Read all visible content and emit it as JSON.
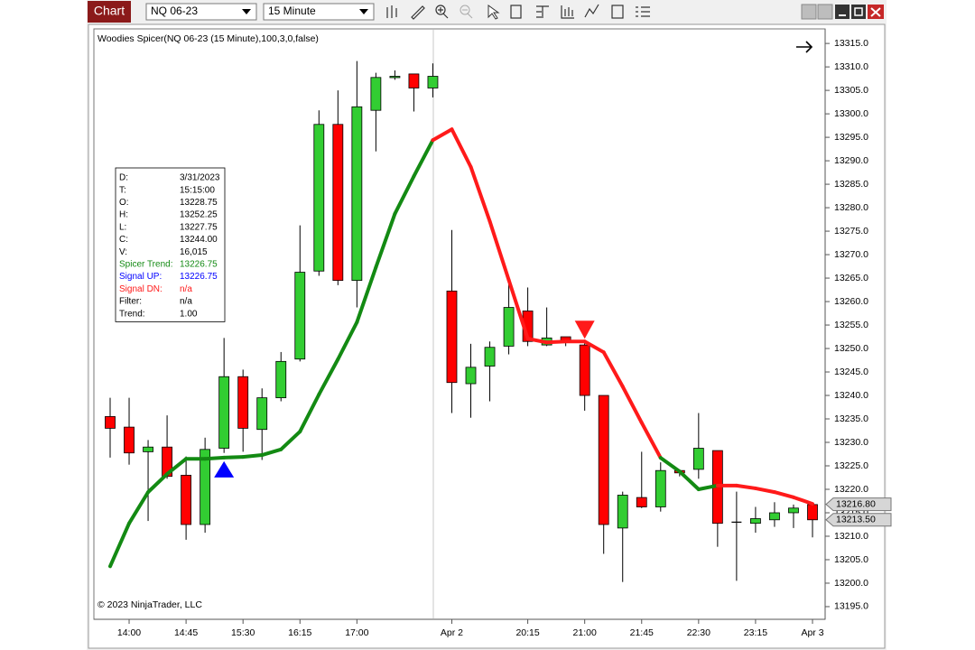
{
  "toolbar": {
    "title": "Chart",
    "instrument": "NQ 06-23",
    "interval": "15 Minute"
  },
  "chart_data": {
    "type": "candlestick",
    "title": "Woodies Spicer(NQ 06-23 (15 Minute),100,3,0,false)",
    "copyright": "© 2023 NinjaTrader, LLC",
    "x": [
      null,
      "14:00",
      null,
      null,
      "14:45",
      null,
      null,
      "15:30",
      null,
      null,
      "16:15",
      null,
      null,
      "17:00",
      null,
      null,
      null,
      null,
      "Apr 2",
      null,
      null,
      null,
      "20:15",
      null,
      null,
      "21:00",
      null,
      null,
      "21:45",
      null,
      null,
      "22:30",
      null,
      null,
      "23:15",
      null,
      null,
      "Apr 3"
    ],
    "open": [
      13235.5,
      13233.25,
      13228,
      13229,
      13223,
      13212.5,
      13228.75,
      13244,
      13232.75,
      13239.5,
      13247.75,
      13266.5,
      13297.75,
      13264.5,
      13300.75,
      13307.75,
      13308.5,
      13305.5,
      13262.25,
      13242.5,
      13246.25,
      13250.5,
      13258,
      13250.75,
      13252.5,
      13250.75,
      13240,
      13211.75,
      13218.25,
      13216.25,
      13224,
      13224.25,
      13228.25,
      13213,
      13212.75,
      13213.5,
      13215,
      13216.75
    ],
    "high": [
      13239.5,
      13239.5,
      13230.5,
      13235.75,
      13227,
      13231,
      13252.25,
      13245.5,
      13241.5,
      13249.25,
      13276.25,
      13300.75,
      13305,
      13311.25,
      13308.75,
      13309.25,
      13308.5,
      13310.75,
      13275.25,
      13251,
      13251.5,
      13265,
      13263,
      13258.75,
      13252.5,
      13251.5,
      13240,
      13219.5,
      13228,
      13225.75,
      13224,
      13236.25,
      13228.25,
      13219.5,
      13216.25,
      13217.25,
      13216.75,
      13216.75
    ],
    "low": [
      13226.75,
      13225.25,
      13213.25,
      13222.25,
      13209.25,
      13210.75,
      13227.75,
      13228,
      13226.25,
      13238.75,
      13247.25,
      13265.5,
      13263.5,
      13258.75,
      13292,
      13307.25,
      13300.5,
      13303.5,
      13236.25,
      13235.25,
      13238.75,
      13248.75,
      13250.5,
      13250.5,
      13250.5,
      13236.75,
      13206.25,
      13200.25,
      13216,
      13215.25,
      13222.75,
      13222.25,
      13207.75,
      13200.5,
      13210.75,
      13212,
      13211.75,
      13209.75
    ],
    "close": [
      13233,
      13227.75,
      13229,
      13222.75,
      13212.5,
      13228.5,
      13244,
      13233,
      13239.5,
      13247.25,
      13266.25,
      13297.75,
      13264.5,
      13301.5,
      13307.75,
      13308,
      13305.5,
      13308,
      13242.75,
      13246,
      13250.25,
      13258.75,
      13251.5,
      13252.25,
      13251.25,
      13240,
      13212.5,
      13218.75,
      13216.25,
      13224,
      13223.5,
      13228.75,
      13212.75,
      13213,
      13213.75,
      13215,
      13216,
      13213.5
    ],
    "up_color": "#32cd32",
    "down_color": "#ff0000",
    "doji_color": "#000000",
    "trend_line": {
      "values": [
        13203.6,
        13212.75,
        13219.4,
        13223.25,
        13226.5,
        13226.5,
        13226.75,
        13226.9,
        13227.3,
        13228.5,
        13232.3,
        13240.2,
        13247.7,
        13255.6,
        13267.3,
        13278.7,
        13286.7,
        13294.4,
        13296.7,
        13288.7,
        13277.1,
        13264.6,
        13252.1,
        13251.3,
        13251.5,
        13251.5,
        13249.2,
        13241.9,
        13234.2,
        13226.7,
        13223.8,
        13220,
        13220.8,
        13220.8,
        13220.2,
        13219.4,
        13218.3,
        13216.9
      ],
      "point_colors": [
        "#138a13",
        "#138a13",
        "#138a13",
        "#138a13",
        "#138a13",
        "#138a13",
        "#138a13",
        "#138a13",
        "#138a13",
        "#138a13",
        "#138a13",
        "#138a13",
        "#138a13",
        "#138a13",
        "#138a13",
        "#138a13",
        "#138a13",
        "#138a13",
        "#ff1a1a",
        "#ff1a1a",
        "#ff1a1a",
        "#ff1a1a",
        "#ff1a1a",
        "#ff1a1a",
        "#ff1a1a",
        "#ff1a1a",
        "#ff1a1a",
        "#ff1a1a",
        "#ff1a1a",
        "#ff1a1a",
        "#138a13",
        "#138a13",
        "#138a13",
        "#ff1a1a",
        "#ff1a1a",
        "#ff1a1a",
        "#ff1a1a",
        "#ff1a1a"
      ]
    },
    "signal_up": {
      "color": "#0000ff",
      "values": [
        null,
        null,
        null,
        null,
        null,
        null,
        13226.75,
        null,
        null,
        null,
        null,
        null,
        null,
        null,
        null,
        null,
        null,
        null,
        null,
        null,
        null,
        null,
        null,
        null,
        null,
        null,
        null,
        null,
        null,
        null,
        null,
        null,
        null,
        null,
        null,
        null,
        null,
        null
      ]
    },
    "signal_dn": {
      "color": "#ff1a1a",
      "values": [
        null,
        null,
        null,
        null,
        null,
        null,
        null,
        null,
        null,
        null,
        null,
        null,
        null,
        null,
        null,
        null,
        null,
        null,
        null,
        null,
        null,
        null,
        null,
        null,
        null,
        13251.5,
        null,
        null,
        null,
        null,
        null,
        null,
        null,
        null,
        null,
        null,
        null,
        null
      ]
    },
    "ylim": [
      13192.3,
      13318.1
    ],
    "yticks": [
      {
        "value": 13315,
        "label": "13315.0"
      },
      {
        "value": 13310,
        "label": "13310.0"
      },
      {
        "value": 13305,
        "label": "13305.0"
      },
      {
        "value": 13300,
        "label": "13300.0"
      },
      {
        "value": 13295,
        "label": "13295.0"
      },
      {
        "value": 13290,
        "label": "13290.0"
      },
      {
        "value": 13285,
        "label": "13285.0"
      },
      {
        "value": 13280,
        "label": "13280.0"
      },
      {
        "value": 13275,
        "label": "13275.0"
      },
      {
        "value": 13270,
        "label": "13270.0"
      },
      {
        "value": 13265,
        "label": "13265.0"
      },
      {
        "value": 13260,
        "label": "13260.0"
      },
      {
        "value": 13255,
        "label": "13255.0"
      },
      {
        "value": 13250,
        "label": "13250.0"
      },
      {
        "value": 13245,
        "label": "13245.0"
      },
      {
        "value": 13240,
        "label": "13240.0"
      },
      {
        "value": 13235,
        "label": "13235.0"
      },
      {
        "value": 13230,
        "label": "13230.0"
      },
      {
        "value": 13225,
        "label": "13225.0"
      },
      {
        "value": 13220,
        "label": "13220.0"
      },
      {
        "value": 13215,
        "label": "13215.0"
      },
      {
        "value": 13210,
        "label": "13210.0"
      },
      {
        "value": 13205,
        "label": "13205.0"
      },
      {
        "value": 13200,
        "label": "13200.0"
      },
      {
        "value": 13195,
        "label": "13195.0"
      }
    ],
    "price_markers": [
      {
        "value": 13216.8,
        "label": "13216.80"
      },
      {
        "value": 13213.5,
        "label": "13213.50"
      }
    ],
    "data_box": [
      {
        "label": "D:",
        "value": "3/31/2023",
        "color": "#000000"
      },
      {
        "label": "T:",
        "value": "15:15:00",
        "color": "#000000"
      },
      {
        "label": "O:",
        "value": "13228.75",
        "color": "#000000"
      },
      {
        "label": "H:",
        "value": "13252.25",
        "color": "#000000"
      },
      {
        "label": "L:",
        "value": "13227.75",
        "color": "#000000"
      },
      {
        "label": "C:",
        "value": "13244.00",
        "color": "#000000"
      },
      {
        "label": "V:",
        "value": "16,015",
        "color": "#000000"
      },
      {
        "label": "Spicer Trend:",
        "value": "13226.75",
        "color": "#138a13"
      },
      {
        "label": "Signal UP:",
        "value": "13226.75",
        "color": "#0000ff"
      },
      {
        "label": "Signal DN:",
        "value": "n/a",
        "color": "#ff1a1a"
      },
      {
        "label": "Filter:",
        "value": "n/a",
        "color": "#000000"
      },
      {
        "label": "Trend:",
        "value": "1.00",
        "color": "#000000"
      }
    ]
  }
}
